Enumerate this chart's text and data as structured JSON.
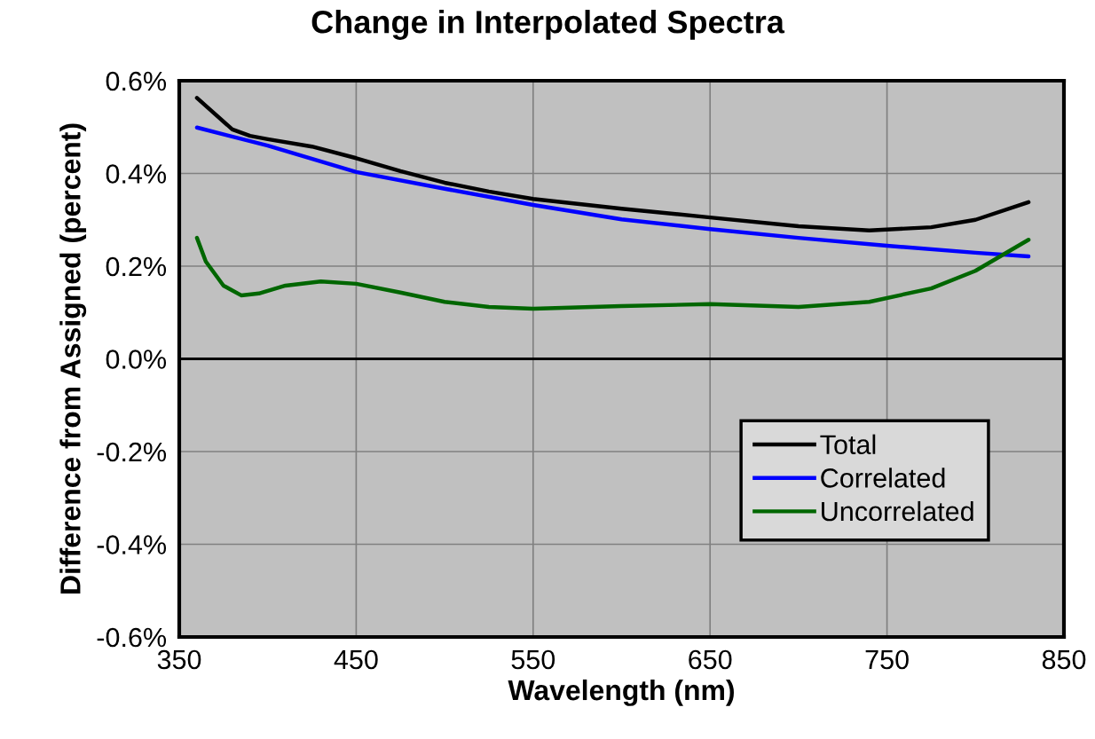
{
  "chart_data": {
    "type": "line",
    "title": "Change in Interpolated Spectra",
    "xlabel": "Wavelength (nm)",
    "ylabel": "Difference from Assigned (percent)",
    "xlim": [
      350,
      850
    ],
    "xticks": [
      350,
      450,
      550,
      650,
      750,
      850
    ],
    "ylim": [
      -0.6,
      0.6
    ],
    "yticks": [
      {
        "value": -0.6,
        "label": "-0.6%"
      },
      {
        "value": -0.4,
        "label": "-0.4%"
      },
      {
        "value": -0.2,
        "label": "-0.2%"
      },
      {
        "value": 0,
        "label": "0.0%"
      },
      {
        "value": 0.2,
        "label": "0.2%"
      },
      {
        "value": 0.4,
        "label": "0.4%"
      },
      {
        "value": 0.6,
        "label": "0.6%"
      }
    ],
    "grid": true,
    "legend": "lower right",
    "marker": "none",
    "line_style": "solid",
    "ref_lines": [
      {
        "axis": "y",
        "value": 0,
        "color": "#000000"
      }
    ],
    "series": [
      {
        "name": "Total",
        "color": "#000000",
        "x": [
          360,
          380,
          390,
          400,
          425,
          450,
          475,
          500,
          525,
          550,
          600,
          650,
          700,
          740,
          775,
          800,
          830
        ],
        "values": [
          0.563,
          0.495,
          0.481,
          0.474,
          0.458,
          0.433,
          0.405,
          0.38,
          0.361,
          0.345,
          0.324,
          0.305,
          0.286,
          0.277,
          0.284,
          0.3,
          0.338
        ]
      },
      {
        "name": "Correlated",
        "color": "#0000ff",
        "x": [
          360,
          400,
          450,
          500,
          550,
          600,
          650,
          700,
          750,
          800,
          830
        ],
        "values": [
          0.499,
          0.46,
          0.403,
          0.367,
          0.332,
          0.301,
          0.28,
          0.261,
          0.244,
          0.229,
          0.221
        ]
      },
      {
        "name": "Uncorrelated",
        "color": "#006600",
        "x": [
          360,
          365,
          375,
          385,
          395,
          410,
          430,
          450,
          475,
          500,
          525,
          550,
          600,
          650,
          700,
          740,
          775,
          800,
          830
        ],
        "values": [
          0.261,
          0.21,
          0.158,
          0.137,
          0.141,
          0.158,
          0.167,
          0.162,
          0.143,
          0.123,
          0.112,
          0.108,
          0.114,
          0.118,
          0.112,
          0.123,
          0.152,
          0.19,
          0.257
        ]
      }
    ]
  }
}
